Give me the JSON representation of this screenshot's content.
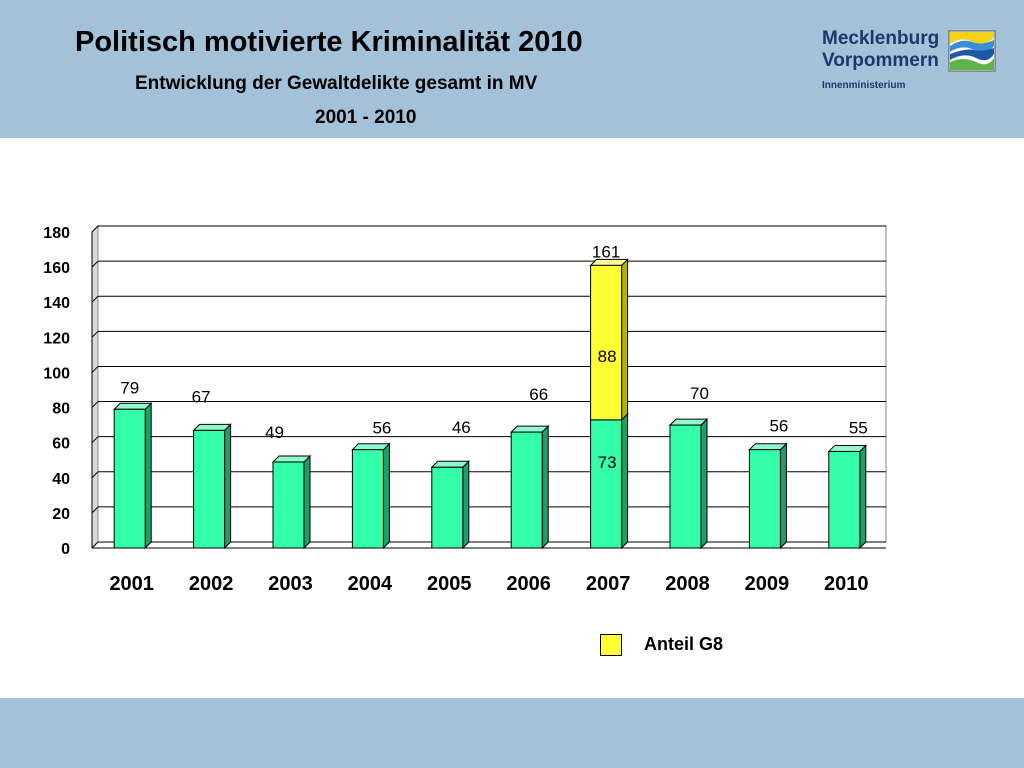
{
  "header": {
    "title": "Politisch motivierte Kriminalität 2010",
    "subtitle": "Entwicklung der Gewaltdelikte gesamt in MV",
    "period": "2001 - 2010"
  },
  "logo": {
    "line1": "Mecklenburg",
    "line2": "Vorpommern",
    "line3": "Innenministerium",
    "icon": "state-coat-emblem"
  },
  "colors": {
    "bar": "#33ffaa",
    "g8": "#ffff33",
    "header_band": "#a3c1d9"
  },
  "chart_data": {
    "type": "bar",
    "categories": [
      "2001",
      "2002",
      "2003",
      "2004",
      "2005",
      "2006",
      "2007",
      "2008",
      "2009",
      "2010"
    ],
    "series": [
      {
        "name": "",
        "values": [
          79,
          67,
          49,
          56,
          46,
          66,
          73,
          70,
          56,
          55
        ]
      },
      {
        "name": "Anteil G8",
        "values": [
          0,
          0,
          0,
          0,
          0,
          0,
          88,
          0,
          0,
          0
        ]
      }
    ],
    "totals": [
      79,
      67,
      49,
      56,
      46,
      66,
      161,
      70,
      56,
      55
    ],
    "stacked": true,
    "ylim": [
      0,
      180
    ],
    "yticks": [
      0,
      20,
      40,
      60,
      80,
      100,
      120,
      140,
      160,
      180
    ],
    "grid": true,
    "legend_position": "bottom-right",
    "legend": [
      "Anteil G8"
    ]
  }
}
